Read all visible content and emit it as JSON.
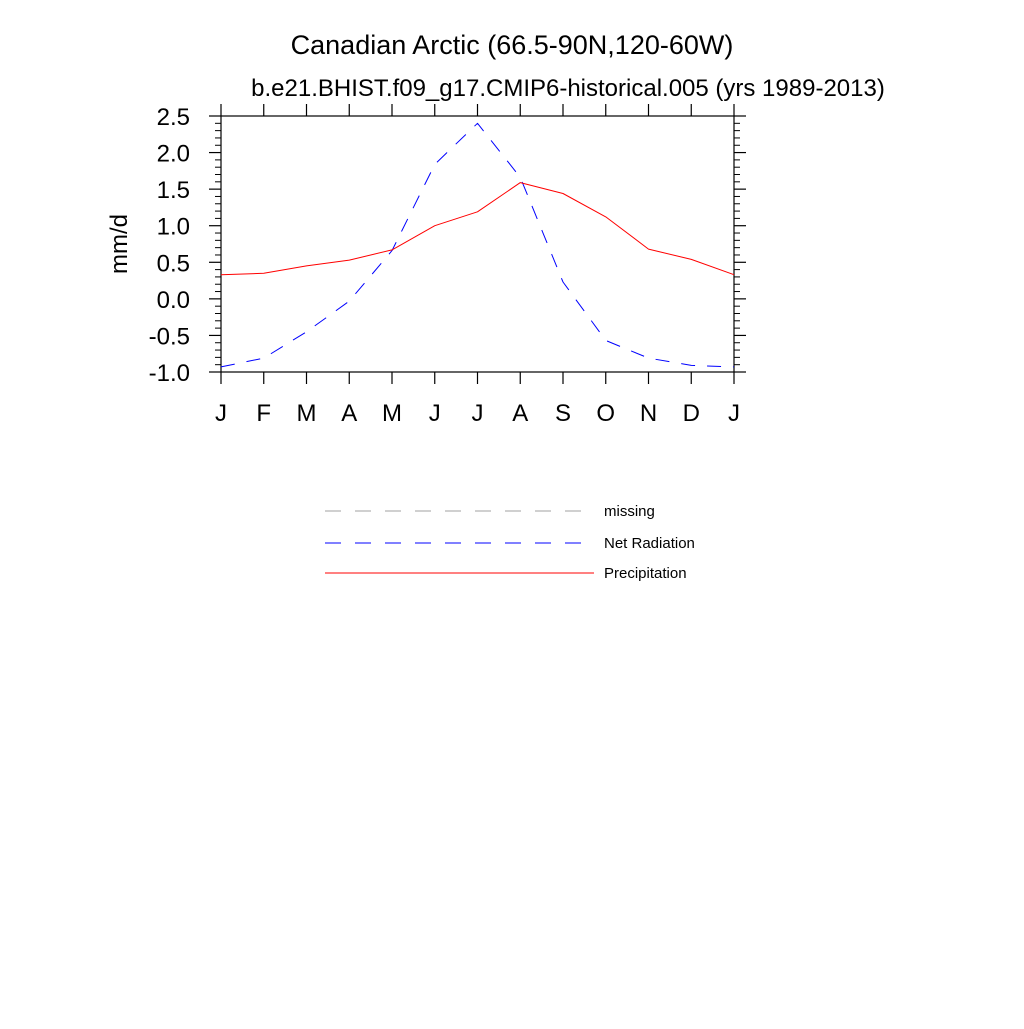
{
  "chart_data": {
    "type": "line",
    "title": "Canadian Arctic (66.5-90N,120-60W)",
    "subtitle": "b.e21.BHIST.f09_g17.CMIP6-historical.005 (yrs 1989-2013)",
    "xlabel": "",
    "ylabel": "mm/d",
    "categories": [
      "J",
      "F",
      "M",
      "A",
      "M",
      "J",
      "J",
      "A",
      "S",
      "O",
      "N",
      "D",
      "J"
    ],
    "ylim": [
      -1.0,
      2.5
    ],
    "yticks": [
      -1.0,
      -0.5,
      0.0,
      0.5,
      1.0,
      1.5,
      2.0,
      2.5
    ],
    "ytick_labels": [
      "-1.0",
      "-0.5",
      "0.0",
      "0.5",
      "1.0",
      "1.5",
      "2.0",
      "2.5"
    ],
    "grid": false,
    "legend_position": "below-center",
    "series": [
      {
        "name": "Net Radiation",
        "color": "#0000ff",
        "style": "dashed",
        "values": [
          -0.93,
          -0.81,
          -0.45,
          -0.03,
          0.66,
          1.84,
          2.4,
          1.66,
          0.23,
          -0.57,
          -0.81,
          -0.91,
          -0.93
        ]
      },
      {
        "name": "Precipitation",
        "color": "#ff0000",
        "style": "solid",
        "values": [
          0.33,
          0.35,
          0.45,
          0.53,
          0.67,
          1.0,
          1.19,
          1.59,
          1.44,
          1.12,
          0.68,
          0.54,
          0.33
        ]
      }
    ],
    "legend": [
      {
        "label": "missing",
        "color": "#a0a0a0",
        "style": "dashed"
      },
      {
        "label": "Net Radiation",
        "color": "#0000ff",
        "style": "dashed"
      },
      {
        "label": "Precipitation",
        "color": "#ff0000",
        "style": "solid"
      }
    ]
  }
}
